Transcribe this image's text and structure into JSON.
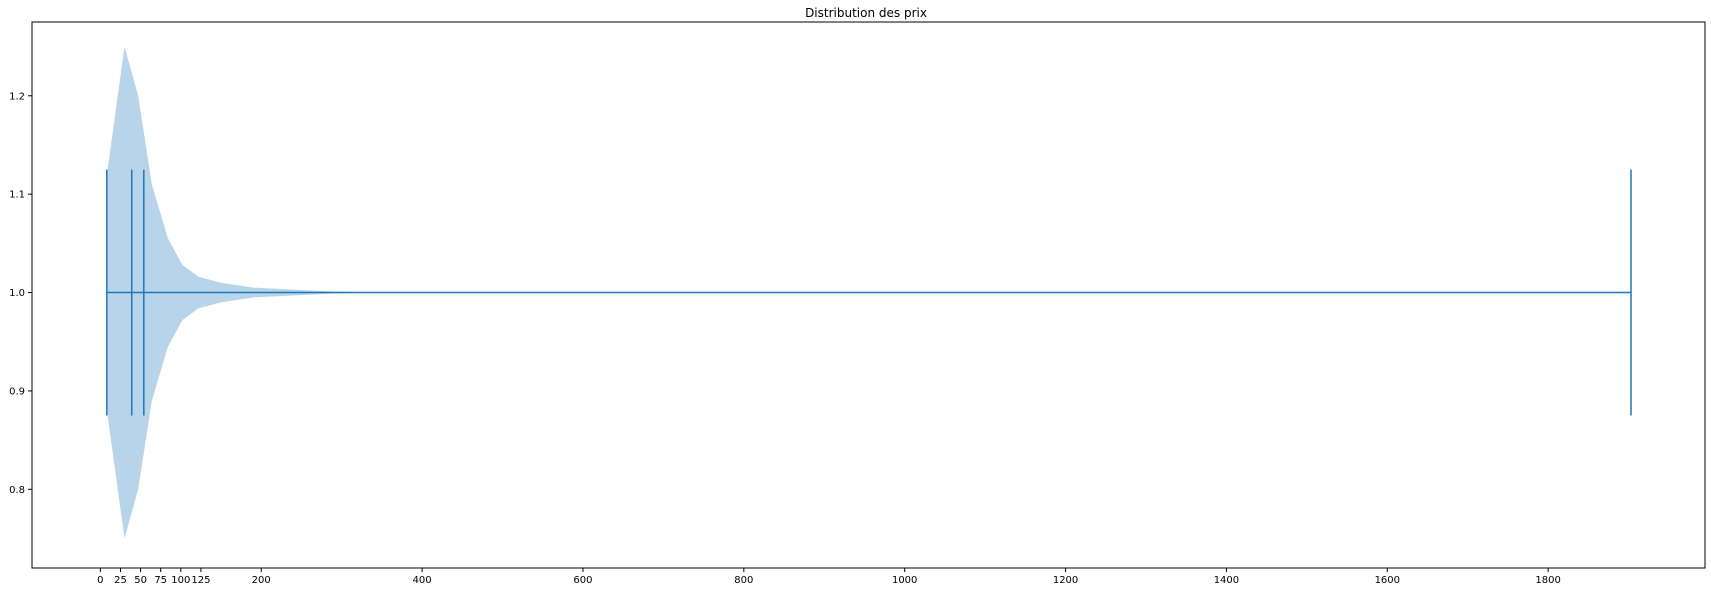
{
  "chart_data": {
    "type": "violin",
    "orientation": "horizontal",
    "title": "Distribution des prix",
    "xlabel": "",
    "ylabel": "",
    "xlim": [
      -85,
      1995
    ],
    "ylim": [
      0.72,
      1.275
    ],
    "x_ticks": [
      0,
      25,
      50,
      75,
      100,
      125,
      200,
      400,
      600,
      800,
      1000,
      1200,
      1400,
      1600,
      1800
    ],
    "y_ticks": [
      0.8,
      0.9,
      1.0,
      1.1,
      1.2
    ],
    "y_tick_labels": [
      "0.8",
      "0.9",
      "1.0",
      "1.1",
      "1.2"
    ],
    "position": 1.0,
    "fill_color": "#b8d4ea",
    "line_color": "#1f77b4",
    "violin_profile": [
      {
        "x": 9,
        "half_width": 0.125
      },
      {
        "x": 30,
        "half_width": 0.25
      },
      {
        "x": 47,
        "half_width": 0.2
      },
      {
        "x": 64,
        "half_width": 0.11
      },
      {
        "x": 84,
        "half_width": 0.055
      },
      {
        "x": 102,
        "half_width": 0.028
      },
      {
        "x": 122,
        "half_width": 0.016
      },
      {
        "x": 150,
        "half_width": 0.01
      },
      {
        "x": 190,
        "half_width": 0.005
      },
      {
        "x": 240,
        "half_width": 0.003
      },
      {
        "x": 290,
        "half_width": 0.001
      },
      {
        "x": 350,
        "half_width": 0.0
      }
    ],
    "stat_lines": [
      {
        "name": "min",
        "x": 8,
        "half_height": 0.125
      },
      {
        "name": "q1",
        "x": 39,
        "half_height": 0.125
      },
      {
        "name": "median",
        "x": 54,
        "half_height": 0.125
      },
      {
        "name": "max",
        "x": 1903,
        "half_height": 0.125
      }
    ],
    "range_line": {
      "from": 8,
      "to": 1903
    }
  }
}
